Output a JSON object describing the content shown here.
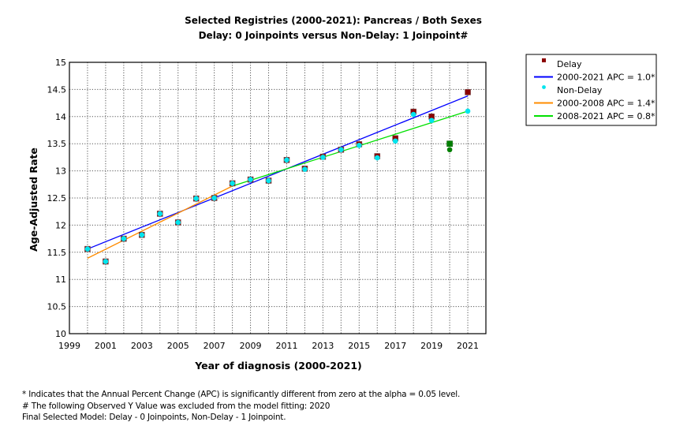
{
  "chart_data": {
    "type": "scatter",
    "title": "Selected Registries (2000-2021): Pancreas / Both Sexes",
    "subtitle": "Delay: 0 Joinpoints  versus  Non-Delay: 1 Joinpoint#",
    "xlabel": "Year of diagnosis (2000-2021)",
    "ylabel": "Age-Adjusted Rate",
    "xlim": [
      1999,
      2022
    ],
    "ylim": [
      10,
      15
    ],
    "xticks": [
      1999,
      2001,
      2003,
      2005,
      2007,
      2009,
      2011,
      2013,
      2015,
      2017,
      2019,
      2021
    ],
    "yticks": [
      10,
      10.5,
      11,
      11.5,
      12,
      12.5,
      13,
      13.5,
      14,
      14.5,
      15
    ],
    "ytick_labels": [
      "10",
      "10.5",
      "11",
      "11.5",
      "12",
      "12.5",
      "13",
      "13.5",
      "14",
      "14.5",
      "15"
    ],
    "grid": true,
    "legend_position": "right",
    "series": [
      {
        "name": "Delay",
        "kind": "points",
        "marker": "square",
        "color": "#8b0000",
        "x": [
          2000,
          2001,
          2002,
          2003,
          2004,
          2005,
          2006,
          2007,
          2008,
          2009,
          2010,
          2011,
          2012,
          2013,
          2014,
          2015,
          2016,
          2017,
          2018,
          2019,
          2021
        ],
        "y": [
          11.56,
          11.33,
          11.75,
          11.82,
          12.21,
          12.05,
          12.49,
          12.5,
          12.77,
          12.84,
          12.82,
          13.2,
          13.04,
          13.26,
          13.39,
          13.49,
          13.27,
          13.6,
          14.09,
          14.0,
          14.45
        ]
      },
      {
        "name": "Non-Delay",
        "kind": "points",
        "marker": "circle",
        "color": "#00e5ee",
        "x": [
          2000,
          2001,
          2002,
          2003,
          2004,
          2005,
          2006,
          2007,
          2008,
          2009,
          2010,
          2011,
          2012,
          2013,
          2014,
          2015,
          2016,
          2017,
          2018,
          2019,
          2021
        ],
        "y": [
          11.56,
          11.33,
          11.75,
          11.82,
          12.21,
          12.05,
          12.49,
          12.5,
          12.77,
          12.84,
          12.82,
          13.2,
          13.03,
          13.25,
          13.39,
          13.47,
          13.24,
          13.55,
          14.04,
          13.93,
          14.1
        ]
      },
      {
        "name": "Delay 2020 (excluded)",
        "kind": "points",
        "marker": "square",
        "color": "#008000",
        "x": [
          2020
        ],
        "y": [
          13.5
        ]
      },
      {
        "name": "Non-Delay 2020 (excluded)",
        "kind": "points",
        "marker": "circle",
        "color": "#008000",
        "x": [
          2020
        ],
        "y": [
          13.39
        ]
      },
      {
        "name": "2000-2021 APC  = 1.0*",
        "kind": "line",
        "color": "#0000ff",
        "x": [
          2000,
          2021
        ],
        "y": [
          11.56,
          14.38
        ]
      },
      {
        "name": "2000-2008 APC  = 1.4*",
        "kind": "line",
        "color": "#ff8c00",
        "x": [
          2000,
          2008
        ],
        "y": [
          11.39,
          12.72
        ]
      },
      {
        "name": "2008-2021 APC  = 0.8*",
        "kind": "line",
        "color": "#00e000",
        "x": [
          2008,
          2021
        ],
        "y": [
          12.72,
          14.1
        ]
      }
    ],
    "legend": [
      {
        "label": "Delay",
        "type": "square",
        "color": "#8b0000"
      },
      {
        "label": "2000-2021 APC  = 1.0*",
        "type": "line",
        "color": "#0000ff"
      },
      {
        "label": "Non-Delay",
        "type": "dot",
        "color": "#00e5ee"
      },
      {
        "label": "2000-2008 APC  = 1.4*",
        "type": "line",
        "color": "#ff8c00"
      },
      {
        "label": "2008-2021 APC  = 0.8*",
        "type": "line",
        "color": "#00e000"
      }
    ]
  },
  "footnotes": {
    "line1": "* Indicates that the Annual Percent Change (APC) is significantly different from zero at the alpha = 0.05 level.",
    "line2": " # The following Observed Y Value was excluded from the model fitting:  2020",
    "line3": "Final Selected Model: Delay - 0 Joinpoints, Non-Delay - 1 Joinpoint."
  }
}
